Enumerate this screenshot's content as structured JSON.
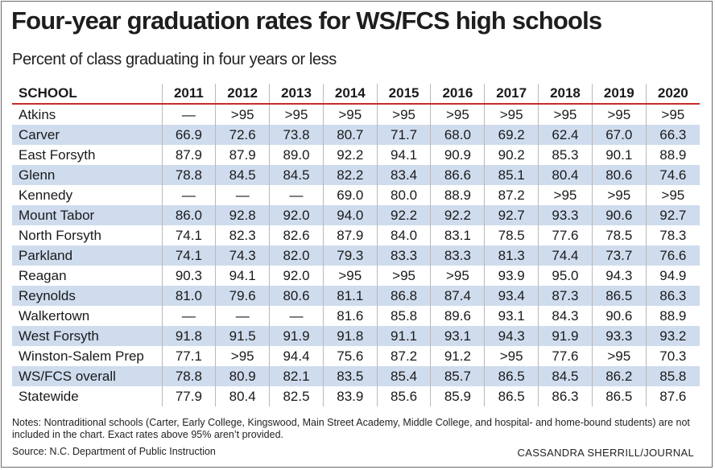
{
  "title": "Four-year graduation rates for WS/FCS high schools",
  "subtitle": "Percent of class graduating in four years or less",
  "table": {
    "columns": [
      "SCHOOL",
      "2011",
      "2012",
      "2013",
      "2014",
      "2015",
      "2016",
      "2017",
      "2018",
      "2019",
      "2020"
    ],
    "rows": [
      [
        "Atkins",
        "—",
        ">95",
        ">95",
        ">95",
        ">95",
        ">95",
        ">95",
        ">95",
        ">95",
        ">95"
      ],
      [
        "Carver",
        "66.9",
        "72.6",
        "73.8",
        "80.7",
        "71.7",
        "68.0",
        "69.2",
        "62.4",
        "67.0",
        "66.3"
      ],
      [
        "East Forsyth",
        "87.9",
        "87.9",
        "89.0",
        "92.2",
        "94.1",
        "90.9",
        "90.2",
        "85.3",
        "90.1",
        "88.9"
      ],
      [
        "Glenn",
        "78.8",
        "84.5",
        "84.5",
        "82.2",
        "83.4",
        "86.6",
        "85.1",
        "80.4",
        "80.6",
        "74.6"
      ],
      [
        "Kennedy",
        "—",
        "—",
        "—",
        "69.0",
        "80.0",
        "88.9",
        "87.2",
        ">95",
        ">95",
        ">95"
      ],
      [
        "Mount Tabor",
        "86.0",
        "92.8",
        "92.0",
        "94.0",
        "92.2",
        "92.2",
        "92.7",
        "93.3",
        "90.6",
        "92.7"
      ],
      [
        "North Forsyth",
        "74.1",
        "82.3",
        "82.6",
        "87.9",
        "84.0",
        "83.1",
        "78.5",
        "77.6",
        "78.5",
        "78.3"
      ],
      [
        "Parkland",
        "74.1",
        "74.3",
        "82.0",
        "79.3",
        "83.3",
        "83.3",
        "81.3",
        "74.4",
        "73.7",
        "76.6"
      ],
      [
        "Reagan",
        "90.3",
        "94.1",
        "92.0",
        ">95",
        ">95",
        ">95",
        "93.9",
        "95.0",
        "94.3",
        "94.9"
      ],
      [
        "Reynolds",
        "81.0",
        "79.6",
        "80.6",
        "81.1",
        "86.8",
        "87.4",
        "93.4",
        "87.3",
        "86.5",
        "86.3"
      ],
      [
        "Walkertown",
        "—",
        "—",
        "—",
        "81.6",
        "85.8",
        "89.6",
        "93.1",
        "84.3",
        "90.6",
        "88.9"
      ],
      [
        "West Forsyth",
        "91.8",
        "91.5",
        "91.9",
        "91.8",
        "91.1",
        "93.1",
        "94.3",
        "91.9",
        "93.3",
        "93.2"
      ],
      [
        "Winston-Salem Prep",
        "77.1",
        ">95",
        "94.4",
        "75.6",
        "87.2",
        "91.2",
        ">95",
        "77.6",
        ">95",
        "70.3"
      ],
      [
        "WS/FCS overall",
        "78.8",
        "80.9",
        "82.1",
        "83.5",
        "85.4",
        "85.7",
        "86.5",
        "84.5",
        "86.2",
        "85.8"
      ],
      [
        "Statewide",
        "77.9",
        "80.4",
        "82.5",
        "83.9",
        "85.6",
        "85.9",
        "86.5",
        "86.3",
        "86.5",
        "87.6"
      ]
    ]
  },
  "notes": "Notes: Nontraditional schools (Carter, Early College, Kingswood, Main Street Academy, Middle College, and hospital- and home-bound students) are not included in the chart. Exact rates above 95% aren’t provided.",
  "source": "Source: N.C. Department of Public Instruction",
  "credit": "CASSANDRA SHERRILL/JOURNAL",
  "colors": {
    "header_rule": "#c62b2b",
    "alt_row": "#cfdcee",
    "text": "#1a1a1a"
  }
}
